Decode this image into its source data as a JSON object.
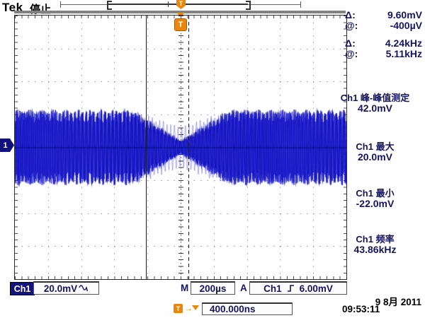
{
  "header": {
    "logo": "Tek",
    "status": "停止"
  },
  "record_view": {
    "trigger_flag": "T"
  },
  "cursor_readout": {
    "rows": [
      {
        "label": "Δ:",
        "value": "9.60mV"
      },
      {
        "label": "@:",
        "value": "-400µV"
      },
      {
        "label": "Δ:",
        "value": "4.24kHz"
      },
      {
        "label": "@:",
        "value": "5.11kHz"
      }
    ]
  },
  "measurements": [
    {
      "label": "Ch1 峰-峰值测定",
      "value": "42.0mV"
    },
    {
      "label": "Ch1 最大",
      "value": "20.0mV"
    },
    {
      "label": "Ch1 最小",
      "value": "-22.0mV"
    },
    {
      "label": "Ch1 频率",
      "value": "43.86kHz"
    }
  ],
  "channel_marker": {
    "label": "1"
  },
  "trigger_marker": {
    "label": "T"
  },
  "bottom_bar": {
    "channel": "Ch1",
    "vertical_scale": "20.0mV",
    "coupling_icon": "sine-wave",
    "m_label": "M",
    "timebase": "200µs",
    "a_label": "A",
    "trigger_source": "Ch1",
    "slope_icon": "rising-edge",
    "trigger_level": "6.00mV"
  },
  "trigger_position_bar": {
    "t_label": "T",
    "arrow": "→",
    "value": "400.000ns"
  },
  "datetime": {
    "date": "9 8月 2011",
    "time": "09:53:11"
  },
  "waveform": {
    "color": "#1a1ad2",
    "edge_color": "#00008b",
    "center_line_color": "#000d66",
    "accent_orange": "#e8860d"
  }
}
